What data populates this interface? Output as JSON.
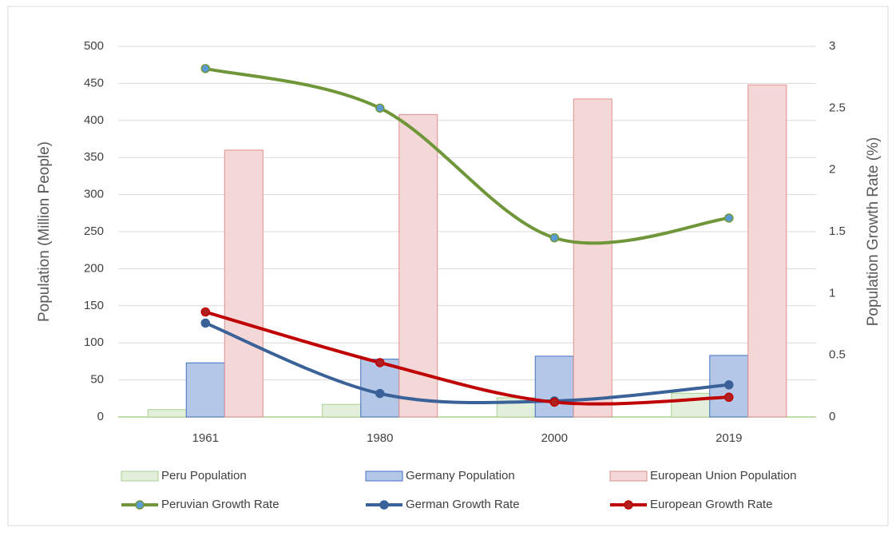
{
  "chart_data": {
    "type": "bar-line",
    "categories": [
      "1961",
      "1980",
      "2000",
      "2019"
    ],
    "ylabel": "Population (Million People)",
    "y2label": "Population Growth Rate (%)",
    "ylim": [
      0,
      500
    ],
    "yticks": [
      0,
      50,
      100,
      150,
      200,
      250,
      300,
      350,
      400,
      450,
      500
    ],
    "y2lim": [
      0,
      3
    ],
    "y2ticks": [
      0,
      0.5,
      1,
      1.5,
      2,
      2.5,
      3
    ],
    "grid": true,
    "legend": "bottom",
    "series": [
      {
        "name": "Peru Population",
        "type": "bar",
        "color": "#e2efda",
        "edge": "#a9d18e",
        "values": [
          10,
          17,
          26,
          32
        ]
      },
      {
        "name": "Germany Population",
        "type": "bar",
        "color": "#b4c7e7",
        "edge": "#4472c4",
        "values": [
          73,
          78,
          82,
          83
        ]
      },
      {
        "name": "European Union Population",
        "type": "bar",
        "color": "#f4d7d7",
        "edge": "#e08f8f",
        "values": [
          360,
          408,
          429,
          448
        ]
      },
      {
        "name": "Peruvian Growth Rate",
        "type": "line",
        "axis": "y2",
        "color": "#70963a",
        "marker": "#5b9bd5",
        "values": [
          2.82,
          2.5,
          1.45,
          1.61
        ]
      },
      {
        "name": "German Growth Rate",
        "type": "line",
        "axis": "y2",
        "color": "#3a6299",
        "marker": "#3a6299",
        "values": [
          0.76,
          0.19,
          0.13,
          0.26
        ]
      },
      {
        "name": "European Growth Rate",
        "type": "line",
        "axis": "y2",
        "color": "#c00000",
        "marker": "#b02020",
        "values": [
          0.85,
          0.44,
          0.12,
          0.16
        ]
      }
    ]
  }
}
